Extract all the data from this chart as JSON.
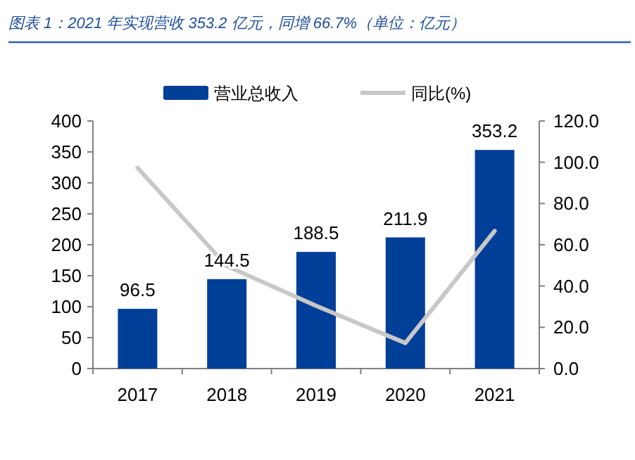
{
  "chart_data": {
    "type": "bar",
    "title": "图表 1：2021 年实现营收 353.2 亿元，同增 66.7%（单位：亿元）",
    "categories": [
      "2017",
      "2018",
      "2019",
      "2020",
      "2021"
    ],
    "series": [
      {
        "name": "营业总收入",
        "color": "#003f98",
        "values": [
          96.5,
          144.5,
          188.5,
          211.9,
          353.2
        ],
        "value_labels": [
          "96.5",
          "144.5",
          "188.5",
          "211.9",
          "353.2"
        ]
      },
      {
        "name": "同比(%)",
        "type": "line",
        "axis": "y2",
        "color": "#c8c8c8",
        "values": [
          97.3,
          49.7,
          30.4,
          12.4,
          66.7
        ]
      }
    ],
    "ylim": [
      0,
      400
    ],
    "yticks": [
      0,
      50,
      100,
      150,
      200,
      250,
      300,
      350,
      400
    ],
    "y2lim": [
      0,
      120
    ],
    "y2ticks": [
      {
        "value": 0,
        "label": "0.0"
      },
      {
        "value": 20,
        "label": "20.0"
      },
      {
        "value": 40,
        "label": "40.0"
      },
      {
        "value": 60,
        "label": "60.0"
      },
      {
        "value": 80,
        "label": "80.0"
      },
      {
        "value": 100,
        "label": "100.0"
      },
      {
        "value": 120,
        "label": "120.0"
      }
    ],
    "legend": "top",
    "grid": false,
    "marker": "none"
  }
}
